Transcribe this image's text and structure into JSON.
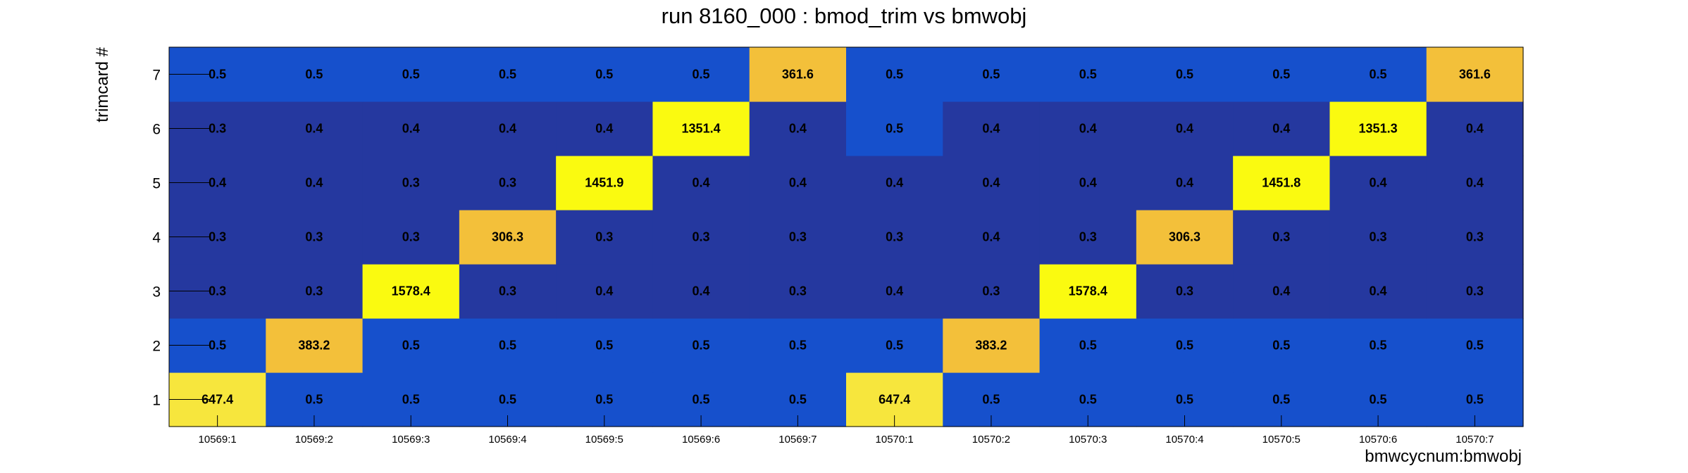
{
  "chart_data": {
    "type": "heatmap",
    "title": "run 8160_000 : bmod_trim vs bmwobj",
    "xlabel": "bmwcycnum:bmwobj",
    "ylabel": "trimcard #",
    "x_categories": [
      "10569:1",
      "10569:2",
      "10569:3",
      "10569:4",
      "10569:5",
      "10569:6",
      "10569:7",
      "10570:1",
      "10570:2",
      "10570:3",
      "10570:4",
      "10570:5",
      "10570:6",
      "10570:7"
    ],
    "y_categories": [
      "1",
      "2",
      "3",
      "4",
      "5",
      "6",
      "7"
    ],
    "values": [
      [
        "647.4",
        "0.5",
        "0.5",
        "0.5",
        "0.5",
        "0.5",
        "0.5",
        "647.4",
        "0.5",
        "0.5",
        "0.5",
        "0.5",
        "0.5",
        "0.5"
      ],
      [
        "0.5",
        "383.2",
        "0.5",
        "0.5",
        "0.5",
        "0.5",
        "0.5",
        "0.5",
        "383.2",
        "0.5",
        "0.5",
        "0.5",
        "0.5",
        "0.5"
      ],
      [
        "0.3",
        "0.3",
        "1578.4",
        "0.3",
        "0.4",
        "0.4",
        "0.3",
        "0.4",
        "0.3",
        "1578.4",
        "0.3",
        "0.4",
        "0.4",
        "0.3"
      ],
      [
        "0.3",
        "0.3",
        "0.3",
        "306.3",
        "0.3",
        "0.3",
        "0.3",
        "0.3",
        "0.4",
        "0.3",
        "306.3",
        "0.3",
        "0.3",
        "0.3"
      ],
      [
        "0.4",
        "0.4",
        "0.3",
        "0.3",
        "1451.9",
        "0.4",
        "0.4",
        "0.4",
        "0.4",
        "0.4",
        "0.4",
        "1451.8",
        "0.4",
        "0.4"
      ],
      [
        "0.3",
        "0.4",
        "0.4",
        "0.4",
        "0.4",
        "1351.4",
        "0.4",
        "0.5",
        "0.4",
        "0.4",
        "0.4",
        "0.4",
        "1351.3",
        "0.4"
      ],
      [
        "0.5",
        "0.5",
        "0.5",
        "0.5",
        "0.5",
        "0.5",
        "361.6",
        "0.5",
        "0.5",
        "0.5",
        "0.5",
        "0.5",
        "0.5",
        "361.6"
      ]
    ],
    "color_scale": {
      "low": "#25389f",
      "mid": "#1650cc",
      "midhigh": "#f3c03a",
      "high": "#f7e63d",
      "highest": "#fafa10"
    },
    "grid": false,
    "legend": "none"
  }
}
